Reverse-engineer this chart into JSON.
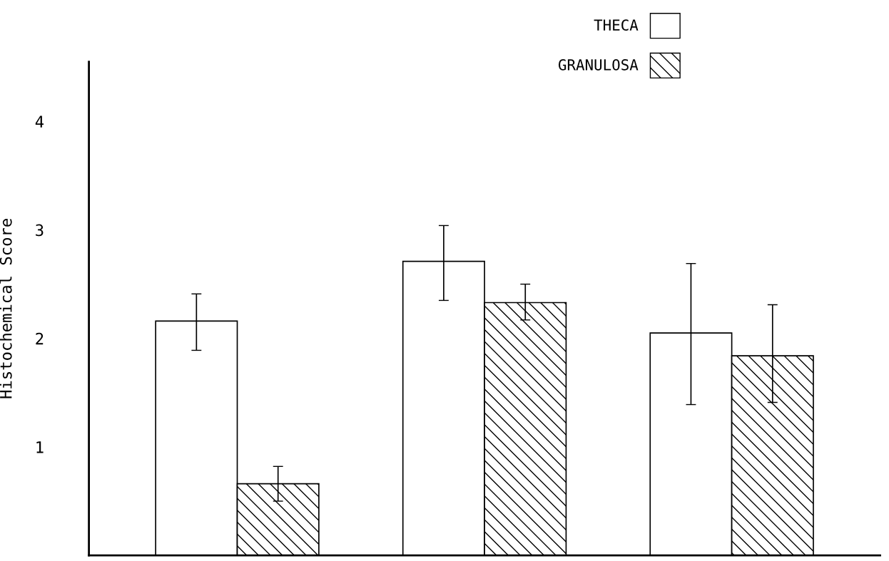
{
  "chart_data": {
    "type": "bar",
    "ylabel": "Histochemical Score",
    "categories": [
      null,
      null,
      null
    ],
    "series": [
      {
        "name": "THECA",
        "color": "#ffffff",
        "values": [
          2.16,
          2.71,
          2.05
        ],
        "errors": [
          [
            1.89,
            2.41
          ],
          [
            2.35,
            3.04
          ],
          [
            1.39,
            2.69
          ]
        ]
      },
      {
        "name": "GRANULOSA",
        "color": "#000000",
        "values": [
          0.66,
          2.33,
          1.84
        ],
        "errors": [
          [
            0.5,
            0.82
          ],
          [
            2.17,
            2.5
          ],
          [
            1.41,
            2.31
          ]
        ]
      }
    ],
    "ylim": [
      0,
      4.55
    ],
    "yticks": [
      1,
      2,
      3,
      4
    ],
    "legend": "top right",
    "grid": false
  }
}
